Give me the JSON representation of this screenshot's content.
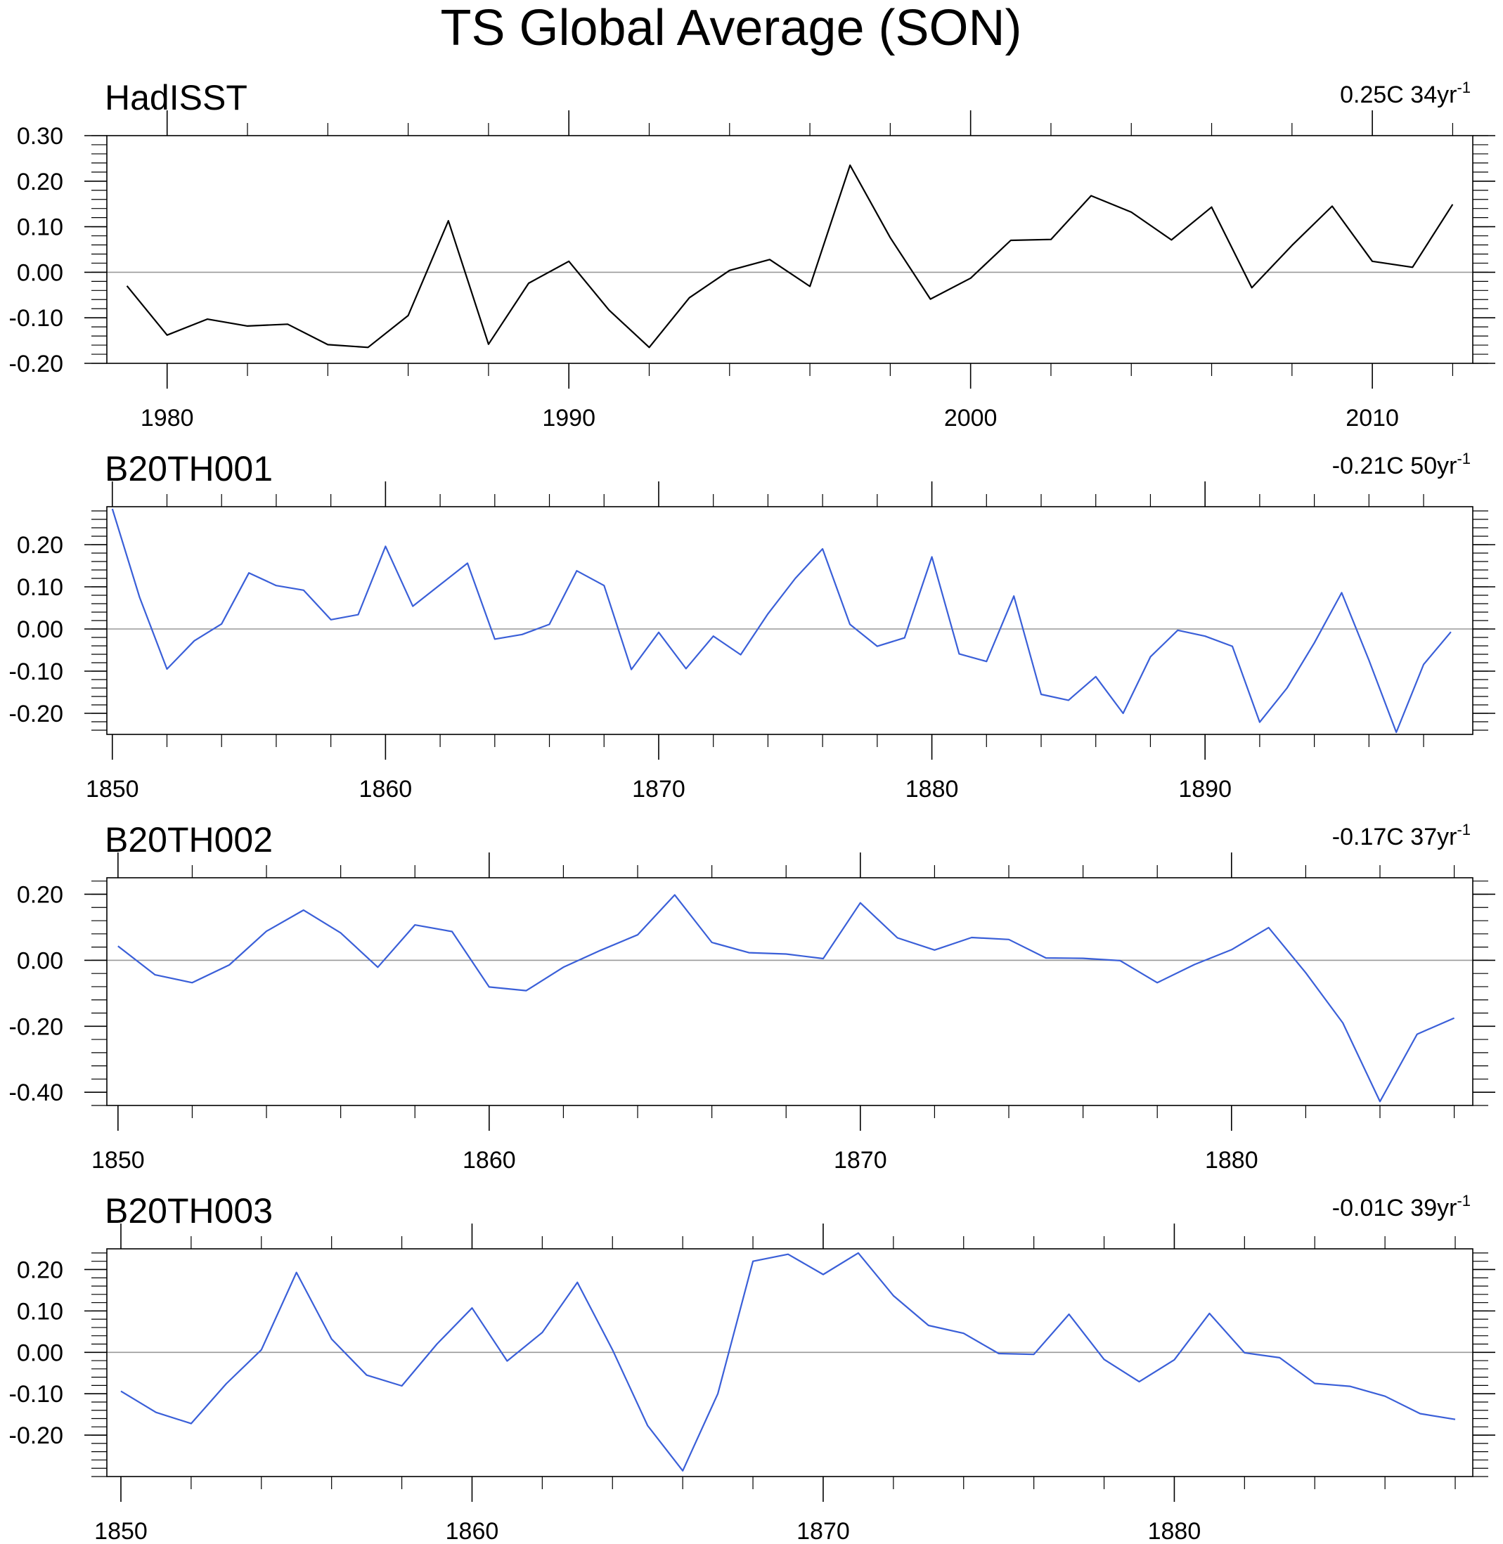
{
  "title": "TS Global Average (SON)",
  "chart_data": [
    {
      "type": "line",
      "name": "HadISST",
      "title": "HadISST",
      "trend": "0.25C 34yr",
      "trend_exp": "-1",
      "color": "#000000",
      "x_start": 1979,
      "x": [
        1979,
        1980,
        1981,
        1982,
        1983,
        1984,
        1985,
        1986,
        1987,
        1988,
        1989,
        1990,
        1991,
        1992,
        1993,
        1994,
        1995,
        1996,
        1997,
        1998,
        1999,
        2000,
        2001,
        2002,
        2003,
        2004,
        2005,
        2006,
        2007,
        2008,
        2009,
        2010,
        2011,
        2012
      ],
      "values": [
        -0.03,
        -0.138,
        -0.103,
        -0.118,
        -0.114,
        -0.159,
        -0.165,
        -0.095,
        0.113,
        -0.158,
        -0.024,
        0.024,
        -0.083,
        -0.165,
        -0.056,
        0.004,
        0.028,
        -0.031,
        0.235,
        0.076,
        -0.059,
        -0.013,
        0.07,
        0.072,
        0.168,
        0.132,
        0.071,
        0.143,
        -0.034,
        0.059,
        0.145,
        0.024,
        0.011,
        0.149
      ],
      "xlim": [
        1978.5,
        2012.5
      ],
      "ylim": [
        -0.2,
        0.3
      ],
      "yticks": [
        -0.2,
        -0.1,
        0.0,
        0.1,
        0.2,
        0.3
      ],
      "ytick_labels": [
        "-0.20",
        "-0.10",
        "0.00",
        "0.10",
        "0.20",
        "0.30"
      ],
      "xticks": [
        1980,
        1990,
        2000,
        2010
      ],
      "xtick_labels": [
        "1980",
        "1990",
        "2000",
        "2010"
      ]
    },
    {
      "type": "line",
      "name": "B20TH001",
      "title": "B20TH001",
      "trend": "-0.21C 50yr",
      "trend_exp": "-1",
      "color": "#3A5FD8",
      "x_start": 1850,
      "x": [
        1850,
        1851,
        1852,
        1853,
        1854,
        1855,
        1856,
        1857,
        1858,
        1859,
        1860,
        1861,
        1862,
        1863,
        1864,
        1865,
        1866,
        1867,
        1868,
        1869,
        1870,
        1871,
        1872,
        1873,
        1874,
        1875,
        1876,
        1877,
        1878,
        1879,
        1880,
        1881,
        1882,
        1883,
        1884,
        1885,
        1886,
        1887,
        1888,
        1889,
        1890,
        1891,
        1892,
        1893,
        1894,
        1895,
        1896,
        1897,
        1898,
        1899
      ],
      "values": [
        0.285,
        0.075,
        -0.095,
        -0.028,
        0.012,
        0.133,
        0.103,
        0.092,
        0.022,
        0.034,
        0.196,
        0.054,
        0.105,
        0.156,
        -0.024,
        -0.013,
        0.011,
        0.138,
        0.103,
        -0.096,
        -0.008,
        -0.094,
        -0.017,
        -0.061,
        0.036,
        0.12,
        0.19,
        0.011,
        -0.041,
        -0.021,
        0.171,
        -0.059,
        -0.077,
        0.078,
        -0.155,
        -0.169,
        -0.113,
        -0.2,
        -0.066,
        -0.003,
        -0.017,
        -0.041,
        -0.221,
        -0.14,
        -0.033,
        0.086,
        -0.074,
        -0.245,
        -0.084,
        -0.007
      ],
      "xlim": [
        1849.8,
        1899.8
      ],
      "ylim": [
        -0.25,
        0.29
      ],
      "yticks": [
        -0.2,
        -0.1,
        0.0,
        0.1,
        0.2
      ],
      "ytick_labels": [
        "-0.20",
        "-0.10",
        "0.00",
        "0.10",
        "0.20"
      ],
      "xticks": [
        1850,
        1860,
        1870,
        1880,
        1890
      ],
      "xtick_labels": [
        "1850",
        "1860",
        "1870",
        "1880",
        "1890"
      ]
    },
    {
      "type": "line",
      "name": "B20TH002",
      "title": "B20TH002",
      "trend": "-0.17C 37yr",
      "trend_exp": "-1",
      "color": "#3A5FD8",
      "x_start": 1850,
      "x": [
        1850,
        1851,
        1852,
        1853,
        1854,
        1855,
        1856,
        1857,
        1858,
        1859,
        1860,
        1861,
        1862,
        1863,
        1864,
        1865,
        1866,
        1867,
        1868,
        1869,
        1870,
        1871,
        1872,
        1873,
        1874,
        1875,
        1876,
        1877,
        1878,
        1879,
        1880,
        1881,
        1882,
        1883,
        1884,
        1885,
        1886
      ],
      "values": [
        0.043,
        -0.044,
        -0.068,
        -0.014,
        0.088,
        0.152,
        0.083,
        -0.021,
        0.107,
        0.087,
        -0.081,
        -0.092,
        -0.021,
        0.03,
        0.077,
        0.198,
        0.054,
        0.023,
        0.019,
        0.005,
        0.174,
        0.068,
        0.031,
        0.069,
        0.063,
        0.007,
        0.006,
        -0.001,
        -0.068,
        -0.013,
        0.032,
        0.099,
        -0.038,
        -0.19,
        -0.428,
        -0.224,
        -0.175
      ],
      "xlim": [
        1849.7,
        1886.5
      ],
      "ylim": [
        -0.44,
        0.25
      ],
      "yticks": [
        -0.4,
        -0.2,
        0.0,
        0.2
      ],
      "ytick_labels": [
        "-0.40",
        "-0.20",
        "0.00",
        "0.20"
      ],
      "xticks": [
        1850,
        1860,
        1870,
        1880
      ],
      "xtick_labels": [
        "1850",
        "1860",
        "1870",
        "1880"
      ]
    },
    {
      "type": "line",
      "name": "B20TH003",
      "title": "B20TH003",
      "trend": "-0.01C 39yr",
      "trend_exp": "-1",
      "color": "#3A5FD8",
      "x_start": 1850,
      "x": [
        1850,
        1851,
        1852,
        1853,
        1854,
        1855,
        1856,
        1857,
        1858,
        1859,
        1860,
        1861,
        1862,
        1863,
        1864,
        1865,
        1866,
        1867,
        1868,
        1869,
        1870,
        1871,
        1872,
        1873,
        1874,
        1875,
        1876,
        1877,
        1878,
        1879,
        1880,
        1881,
        1882,
        1883,
        1884,
        1885,
        1886,
        1887,
        1888
      ],
      "values": [
        -0.094,
        -0.145,
        -0.172,
        -0.076,
        0.006,
        0.193,
        0.032,
        -0.055,
        -0.081,
        0.02,
        0.107,
        -0.021,
        0.048,
        0.169,
        0.006,
        -0.177,
        -0.286,
        -0.1,
        0.22,
        0.237,
        0.188,
        0.24,
        0.137,
        0.065,
        0.046,
        -0.003,
        -0.005,
        0.092,
        -0.017,
        -0.071,
        -0.018,
        0.094,
        -0.001,
        -0.013,
        -0.075,
        -0.082,
        -0.106,
        -0.148,
        -0.162
      ],
      "xlim": [
        1849.6,
        1888.5
      ],
      "ylim": [
        -0.3,
        0.25
      ],
      "yticks": [
        -0.2,
        -0.1,
        0.0,
        0.1,
        0.2
      ],
      "ytick_labels": [
        "-0.20",
        "-0.10",
        "0.00",
        "0.10",
        "0.20"
      ],
      "xticks": [
        1850,
        1860,
        1870,
        1880
      ],
      "xtick_labels": [
        "1850",
        "1860",
        "1870",
        "1880"
      ]
    }
  ]
}
